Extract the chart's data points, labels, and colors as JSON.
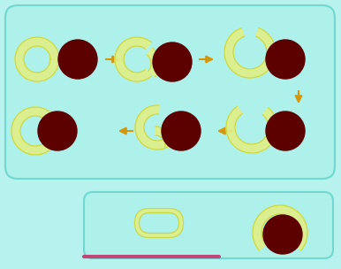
{
  "bg_color": "#b8f2ee",
  "box1_facecolor": "#aef0ea",
  "box1_edgecolor": "#70d8d0",
  "box2_facecolor": "#aef0ea",
  "box2_edgecolor": "#70d8d0",
  "np_color": "#5c0000",
  "mem_fill": "#e0ee88",
  "mem_edge": "#c8d840",
  "mem_inner": "#aef0ea",
  "arrow_color": "#d4960a",
  "support_color": "#c04878",
  "fig_width": 3.86,
  "fig_height": 3.04,
  "dpi": 100,
  "R_np": 22,
  "R_v": 20,
  "bilayer_thick": 5
}
